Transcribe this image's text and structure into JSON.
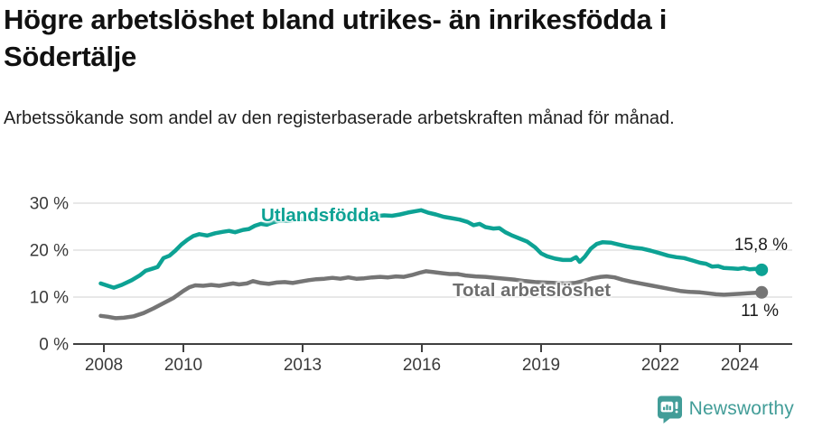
{
  "header": {
    "title": "Högre arbetslöshet bland utrikes- än inrikesfödda i Södertälje",
    "subtitle": "Arbetssökande som andel av den registerbaserade arbetskraften månad för månad."
  },
  "colors": {
    "teal": "#0da294",
    "gray": "#757575",
    "gray_label": "#6e6e6e",
    "grid": "#d9d9d9",
    "axis": "#404040",
    "tick_text": "#3a3a3a",
    "value_text": "#1a1a1a",
    "brand_teal": "#429d98"
  },
  "chart_data": {
    "type": "line",
    "title": "Högre arbetslöshet bland utrikes- än inrikesfödda i Södertälje",
    "subtitle": "Arbetssökande som andel av den registerbaserade arbetskraften månad för månad.",
    "xlabel": "",
    "ylabel": "",
    "grid": "horizontal",
    "legend_position": "inline-labels",
    "xlim": [
      2007.85,
      2024.75
    ],
    "ylim": [
      0,
      30
    ],
    "y_ticks": [
      {
        "value": 0,
        "label": "0 %"
      },
      {
        "value": 10,
        "label": "10 %"
      },
      {
        "value": 20,
        "label": "20 %"
      },
      {
        "value": 30,
        "label": "30 %"
      }
    ],
    "x_ticks": [
      {
        "value": 2008,
        "label": "2008"
      },
      {
        "value": 2010,
        "label": "2010"
      },
      {
        "value": 2013,
        "label": "2013"
      },
      {
        "value": 2016,
        "label": "2016"
      },
      {
        "value": 2019,
        "label": "2019"
      },
      {
        "value": 2022,
        "label": "2022"
      },
      {
        "value": 2024,
        "label": "2024"
      }
    ],
    "series": [
      {
        "name": "Utlandsfödda",
        "color": "#0da294",
        "end_label": "15,8 %",
        "end_value": 15.8,
        "points": [
          [
            2007.92,
            12.9
          ],
          [
            2008.1,
            12.4
          ],
          [
            2008.25,
            12.0
          ],
          [
            2008.45,
            12.6
          ],
          [
            2008.7,
            13.6
          ],
          [
            2008.9,
            14.6
          ],
          [
            2009.05,
            15.6
          ],
          [
            2009.2,
            16.0
          ],
          [
            2009.35,
            16.4
          ],
          [
            2009.5,
            18.3
          ],
          [
            2009.65,
            18.8
          ],
          [
            2009.8,
            19.9
          ],
          [
            2009.95,
            21.2
          ],
          [
            2010.1,
            22.2
          ],
          [
            2010.25,
            23.0
          ],
          [
            2010.4,
            23.4
          ],
          [
            2010.6,
            23.1
          ],
          [
            2010.8,
            23.6
          ],
          [
            2011.0,
            23.9
          ],
          [
            2011.15,
            24.1
          ],
          [
            2011.3,
            23.8
          ],
          [
            2011.5,
            24.3
          ],
          [
            2011.65,
            24.5
          ],
          [
            2011.8,
            25.2
          ],
          [
            2011.95,
            25.6
          ],
          [
            2012.1,
            25.4
          ],
          [
            2012.25,
            25.9
          ],
          [
            2012.45,
            26.3
          ],
          [
            2012.65,
            26.2
          ],
          [
            2012.85,
            26.6
          ],
          [
            2013.05,
            26.6
          ],
          [
            2013.3,
            26.9
          ],
          [
            2013.55,
            26.8
          ],
          [
            2013.8,
            27.0
          ],
          [
            2014.05,
            27.2
          ],
          [
            2014.3,
            27.0
          ],
          [
            2014.55,
            27.3
          ],
          [
            2014.8,
            27.2
          ],
          [
            2015.05,
            27.4
          ],
          [
            2015.25,
            27.3
          ],
          [
            2015.45,
            27.6
          ],
          [
            2015.65,
            28.0
          ],
          [
            2015.85,
            28.3
          ],
          [
            2015.98,
            28.5
          ],
          [
            2016.15,
            28.0
          ],
          [
            2016.35,
            27.6
          ],
          [
            2016.55,
            27.1
          ],
          [
            2016.75,
            26.8
          ],
          [
            2016.95,
            26.5
          ],
          [
            2017.15,
            26.0
          ],
          [
            2017.3,
            25.3
          ],
          [
            2017.45,
            25.6
          ],
          [
            2017.6,
            24.9
          ],
          [
            2017.8,
            24.6
          ],
          [
            2017.95,
            24.7
          ],
          [
            2018.1,
            23.8
          ],
          [
            2018.25,
            23.2
          ],
          [
            2018.45,
            22.5
          ],
          [
            2018.65,
            21.8
          ],
          [
            2018.85,
            20.6
          ],
          [
            2019.0,
            19.3
          ],
          [
            2019.15,
            18.7
          ],
          [
            2019.35,
            18.2
          ],
          [
            2019.55,
            17.9
          ],
          [
            2019.75,
            17.9
          ],
          [
            2019.88,
            18.5
          ],
          [
            2019.97,
            17.5
          ],
          [
            2020.1,
            18.6
          ],
          [
            2020.25,
            20.3
          ],
          [
            2020.4,
            21.3
          ],
          [
            2020.55,
            21.7
          ],
          [
            2020.75,
            21.6
          ],
          [
            2020.95,
            21.2
          ],
          [
            2021.15,
            20.8
          ],
          [
            2021.35,
            20.5
          ],
          [
            2021.55,
            20.3
          ],
          [
            2021.75,
            19.9
          ],
          [
            2022.0,
            19.3
          ],
          [
            2022.2,
            18.8
          ],
          [
            2022.4,
            18.5
          ],
          [
            2022.6,
            18.3
          ],
          [
            2022.8,
            17.8
          ],
          [
            2023.0,
            17.3
          ],
          [
            2023.15,
            17.1
          ],
          [
            2023.3,
            16.5
          ],
          [
            2023.45,
            16.6
          ],
          [
            2023.6,
            16.2
          ],
          [
            2023.8,
            16.1
          ],
          [
            2023.95,
            16.0
          ],
          [
            2024.1,
            16.2
          ],
          [
            2024.25,
            15.9
          ],
          [
            2024.4,
            16.0
          ],
          [
            2024.55,
            15.8
          ]
        ]
      },
      {
        "name": "Total arbetslöshet",
        "color": "#757575",
        "end_label": "11 %",
        "end_value": 11,
        "points": [
          [
            2007.92,
            6.0
          ],
          [
            2008.1,
            5.8
          ],
          [
            2008.3,
            5.5
          ],
          [
            2008.5,
            5.6
          ],
          [
            2008.75,
            5.9
          ],
          [
            2009.0,
            6.6
          ],
          [
            2009.25,
            7.6
          ],
          [
            2009.5,
            8.7
          ],
          [
            2009.75,
            9.8
          ],
          [
            2010.0,
            11.3
          ],
          [
            2010.15,
            12.1
          ],
          [
            2010.3,
            12.5
          ],
          [
            2010.5,
            12.4
          ],
          [
            2010.7,
            12.6
          ],
          [
            2010.9,
            12.4
          ],
          [
            2011.1,
            12.7
          ],
          [
            2011.25,
            12.9
          ],
          [
            2011.4,
            12.7
          ],
          [
            2011.6,
            12.9
          ],
          [
            2011.75,
            13.4
          ],
          [
            2011.95,
            13.0
          ],
          [
            2012.15,
            12.8
          ],
          [
            2012.35,
            13.1
          ],
          [
            2012.55,
            13.2
          ],
          [
            2012.75,
            13.0
          ],
          [
            2012.95,
            13.3
          ],
          [
            2013.15,
            13.6
          ],
          [
            2013.35,
            13.8
          ],
          [
            2013.55,
            13.9
          ],
          [
            2013.75,
            14.1
          ],
          [
            2013.95,
            13.9
          ],
          [
            2014.15,
            14.2
          ],
          [
            2014.35,
            13.9
          ],
          [
            2014.55,
            14.0
          ],
          [
            2014.75,
            14.2
          ],
          [
            2014.95,
            14.3
          ],
          [
            2015.15,
            14.2
          ],
          [
            2015.35,
            14.4
          ],
          [
            2015.55,
            14.3
          ],
          [
            2015.75,
            14.7
          ],
          [
            2015.95,
            15.2
          ],
          [
            2016.1,
            15.5
          ],
          [
            2016.3,
            15.3
          ],
          [
            2016.5,
            15.1
          ],
          [
            2016.7,
            14.9
          ],
          [
            2016.9,
            14.9
          ],
          [
            2017.1,
            14.6
          ],
          [
            2017.35,
            14.4
          ],
          [
            2017.6,
            14.3
          ],
          [
            2017.85,
            14.1
          ],
          [
            2018.1,
            13.9
          ],
          [
            2018.35,
            13.7
          ],
          [
            2018.6,
            13.4
          ],
          [
            2018.85,
            13.2
          ],
          [
            2019.1,
            13.1
          ],
          [
            2019.35,
            13.0
          ],
          [
            2019.6,
            12.9
          ],
          [
            2019.85,
            13.0
          ],
          [
            2020.1,
            13.5
          ],
          [
            2020.3,
            14.0
          ],
          [
            2020.5,
            14.3
          ],
          [
            2020.65,
            14.4
          ],
          [
            2020.85,
            14.2
          ],
          [
            2021.05,
            13.7
          ],
          [
            2021.25,
            13.3
          ],
          [
            2021.5,
            12.9
          ],
          [
            2021.75,
            12.5
          ],
          [
            2022.0,
            12.1
          ],
          [
            2022.25,
            11.7
          ],
          [
            2022.5,
            11.3
          ],
          [
            2022.75,
            11.1
          ],
          [
            2023.0,
            11.0
          ],
          [
            2023.2,
            10.8
          ],
          [
            2023.4,
            10.6
          ],
          [
            2023.6,
            10.5
          ],
          [
            2023.8,
            10.6
          ],
          [
            2024.0,
            10.7
          ],
          [
            2024.2,
            10.8
          ],
          [
            2024.4,
            10.9
          ],
          [
            2024.55,
            11.0
          ]
        ]
      }
    ]
  },
  "footer": {
    "brand": "Newsworthy"
  }
}
